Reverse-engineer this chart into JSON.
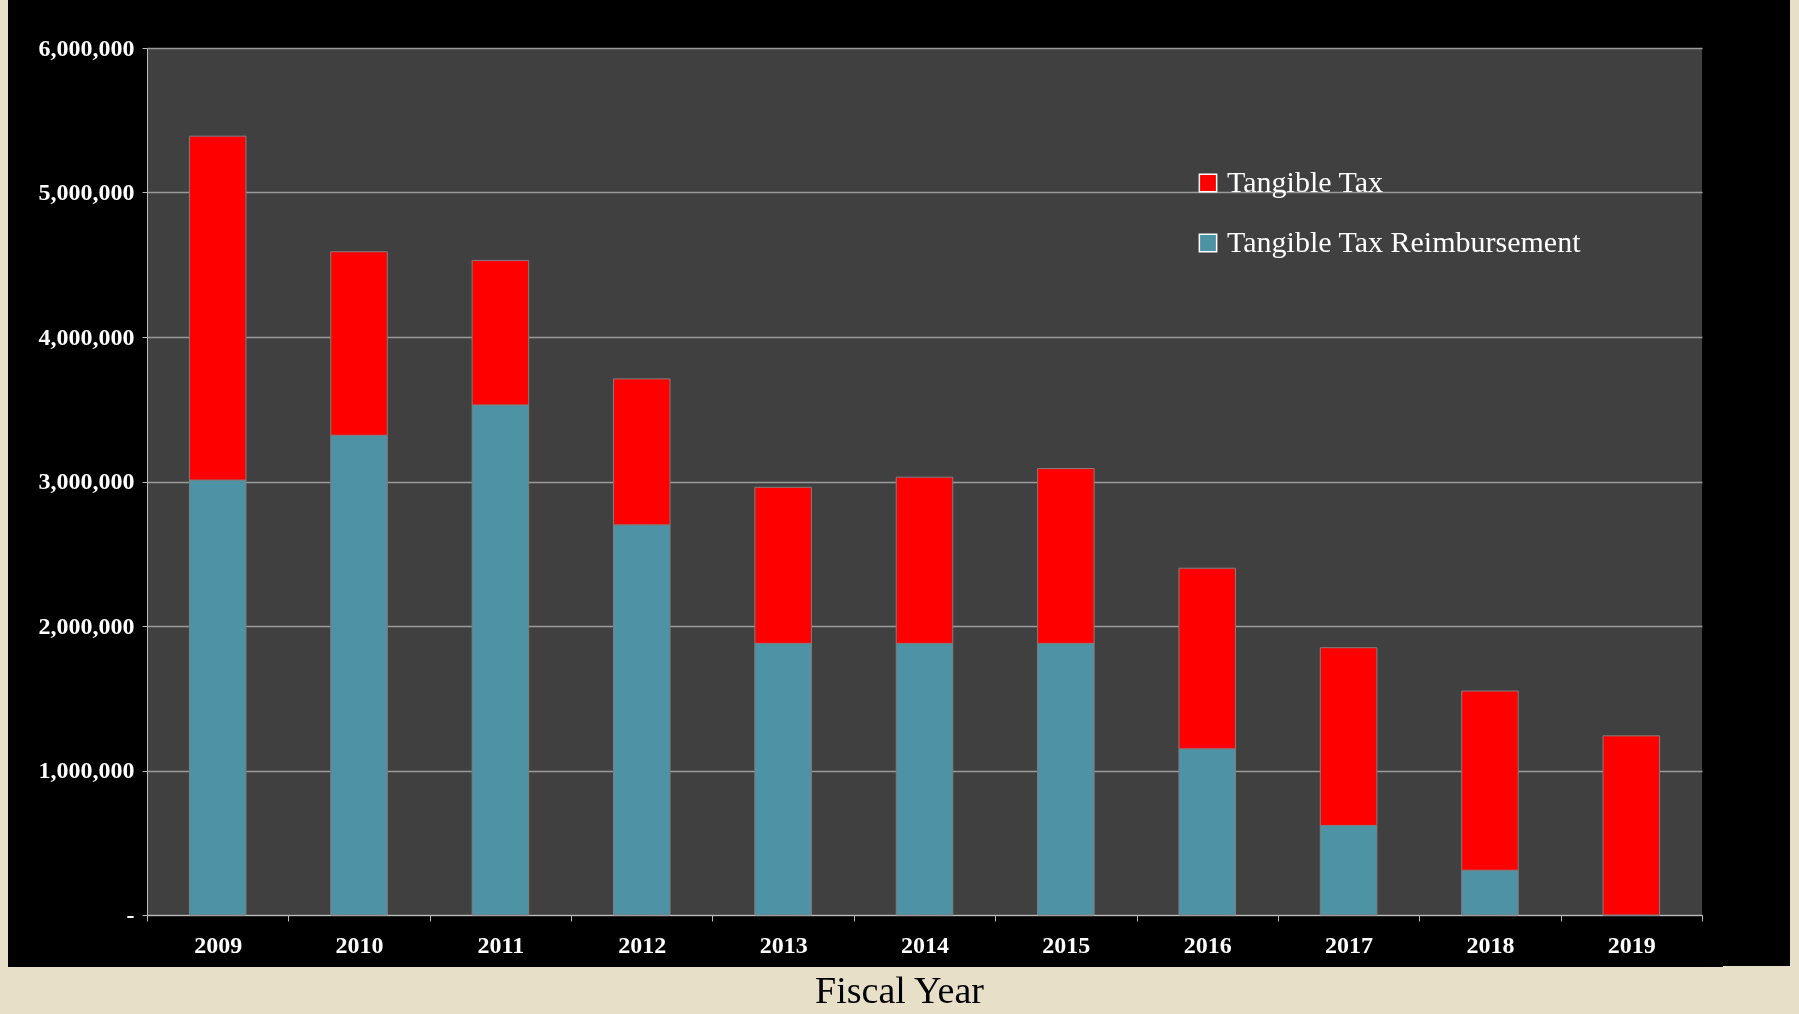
{
  "chart_data": {
    "type": "bar",
    "stacked": true,
    "xlabel": "Fiscal Year",
    "categories": [
      "2009",
      "2010",
      "2011",
      "2012",
      "2013",
      "2014",
      "2015",
      "2016",
      "2017",
      "2018",
      "2019"
    ],
    "series": [
      {
        "name": "Tangible Tax Reimbursement",
        "color": "#4e92a6",
        "values": [
          3010000,
          3320000,
          3530000,
          2700000,
          1880000,
          1880000,
          1880000,
          1150000,
          620000,
          310000,
          0
        ]
      },
      {
        "name": "Tangible Tax",
        "color": "#ff0000",
        "values": [
          2380000,
          1270000,
          1000000,
          1010000,
          1080000,
          1150000,
          1210000,
          1250000,
          1230000,
          1240000,
          1240000
        ]
      }
    ],
    "ylim": [
      0,
      6000000
    ],
    "yticks": [
      {
        "value": 0,
        "label": "-"
      },
      {
        "value": 1000000,
        "label": "1,000,000"
      },
      {
        "value": 2000000,
        "label": "2,000,000"
      },
      {
        "value": 3000000,
        "label": "3,000,000"
      },
      {
        "value": 4000000,
        "label": "4,000,000"
      },
      {
        "value": 5000000,
        "label": "5,000,000"
      },
      {
        "value": 6000000,
        "label": "6,000,000"
      }
    ],
    "grid": "y",
    "legend": "top right"
  }
}
